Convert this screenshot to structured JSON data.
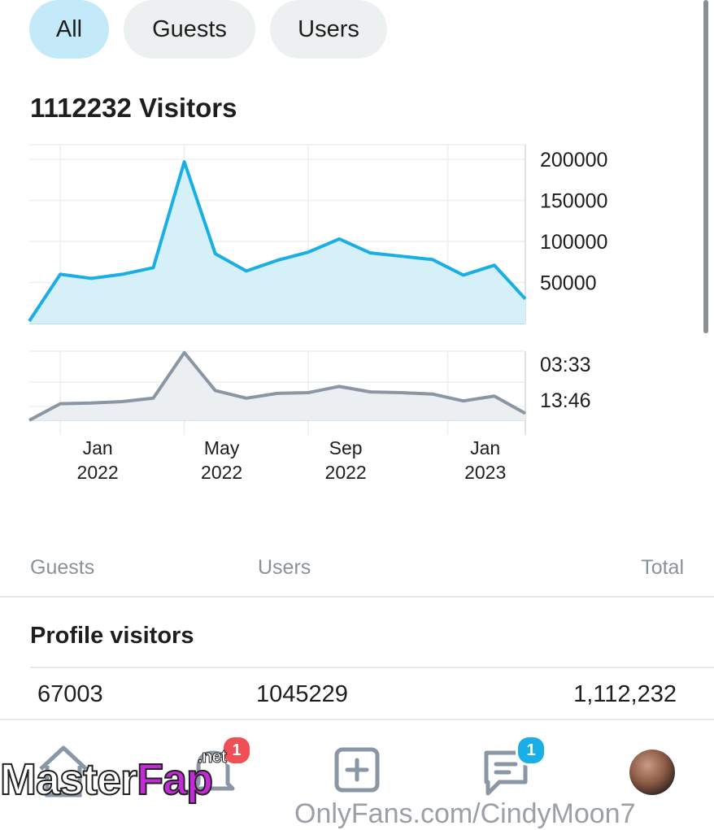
{
  "filters": {
    "all": "All",
    "guests": "Guests",
    "users": "Users",
    "active": "All"
  },
  "summary": {
    "title": "1112232 Visitors"
  },
  "chart_data": [
    {
      "type": "area",
      "title": "1112232 Visitors",
      "x_tick_labels": [
        [
          "Jan",
          "2022"
        ],
        [
          "May",
          "2022"
        ],
        [
          "Sep",
          "2022"
        ],
        [
          "Jan",
          "2023"
        ]
      ],
      "x": [
        0,
        1,
        2,
        3,
        4,
        5,
        6,
        7,
        8,
        9,
        10,
        11,
        12,
        13,
        14,
        15,
        16
      ],
      "x_tick_positions": [
        1,
        5,
        9,
        13.5
      ],
      "values": [
        3000,
        60000,
        55000,
        60000,
        68000,
        197000,
        85000,
        64000,
        77000,
        87000,
        103000,
        86000,
        82000,
        78000,
        59000,
        71000,
        30000
      ],
      "y_ticks": [
        200000,
        150000,
        100000,
        50000
      ],
      "ylim": [
        0,
        200000
      ],
      "color": "#1aaee7",
      "fill": "#d6f0fa",
      "grid": true
    },
    {
      "type": "area",
      "x": [
        0,
        1,
        2,
        3,
        4,
        5,
        6,
        7,
        8,
        9,
        10,
        11,
        12,
        13,
        14,
        15,
        16
      ],
      "values": [
        0,
        24,
        25,
        27,
        32,
        98,
        43,
        32,
        39,
        40,
        49,
        41,
        40,
        38,
        28,
        35,
        10
      ],
      "y_ticks": [
        "03:33",
        "13:46"
      ],
      "ylim": [
        0,
        100
      ],
      "color": "#8a96a3",
      "fill": "#eceff1",
      "grid": true
    }
  ],
  "table": {
    "columns": {
      "guests": "Guests",
      "users": "Users",
      "total": "Total"
    },
    "section_title": "Profile visitors",
    "row": {
      "guests": "67003",
      "users": "1045229",
      "total": "1,112,232"
    }
  },
  "nav": {
    "items": [
      {
        "name": "home",
        "icon": "home-icon"
      },
      {
        "name": "notifications",
        "icon": "notification-icon",
        "badge": "1",
        "badge_color": "#f04f55"
      },
      {
        "name": "add",
        "icon": "plus-square-icon"
      },
      {
        "name": "messages",
        "icon": "message-icon",
        "badge": "1",
        "badge_color": "#1aaee7"
      },
      {
        "name": "profile",
        "icon": "avatar"
      }
    ]
  },
  "watermark": {
    "brand_a": "Master",
    "brand_b": "Fap",
    "suffix": ".net"
  },
  "footer_url": "OnlyFans.com/CindyMoon7"
}
